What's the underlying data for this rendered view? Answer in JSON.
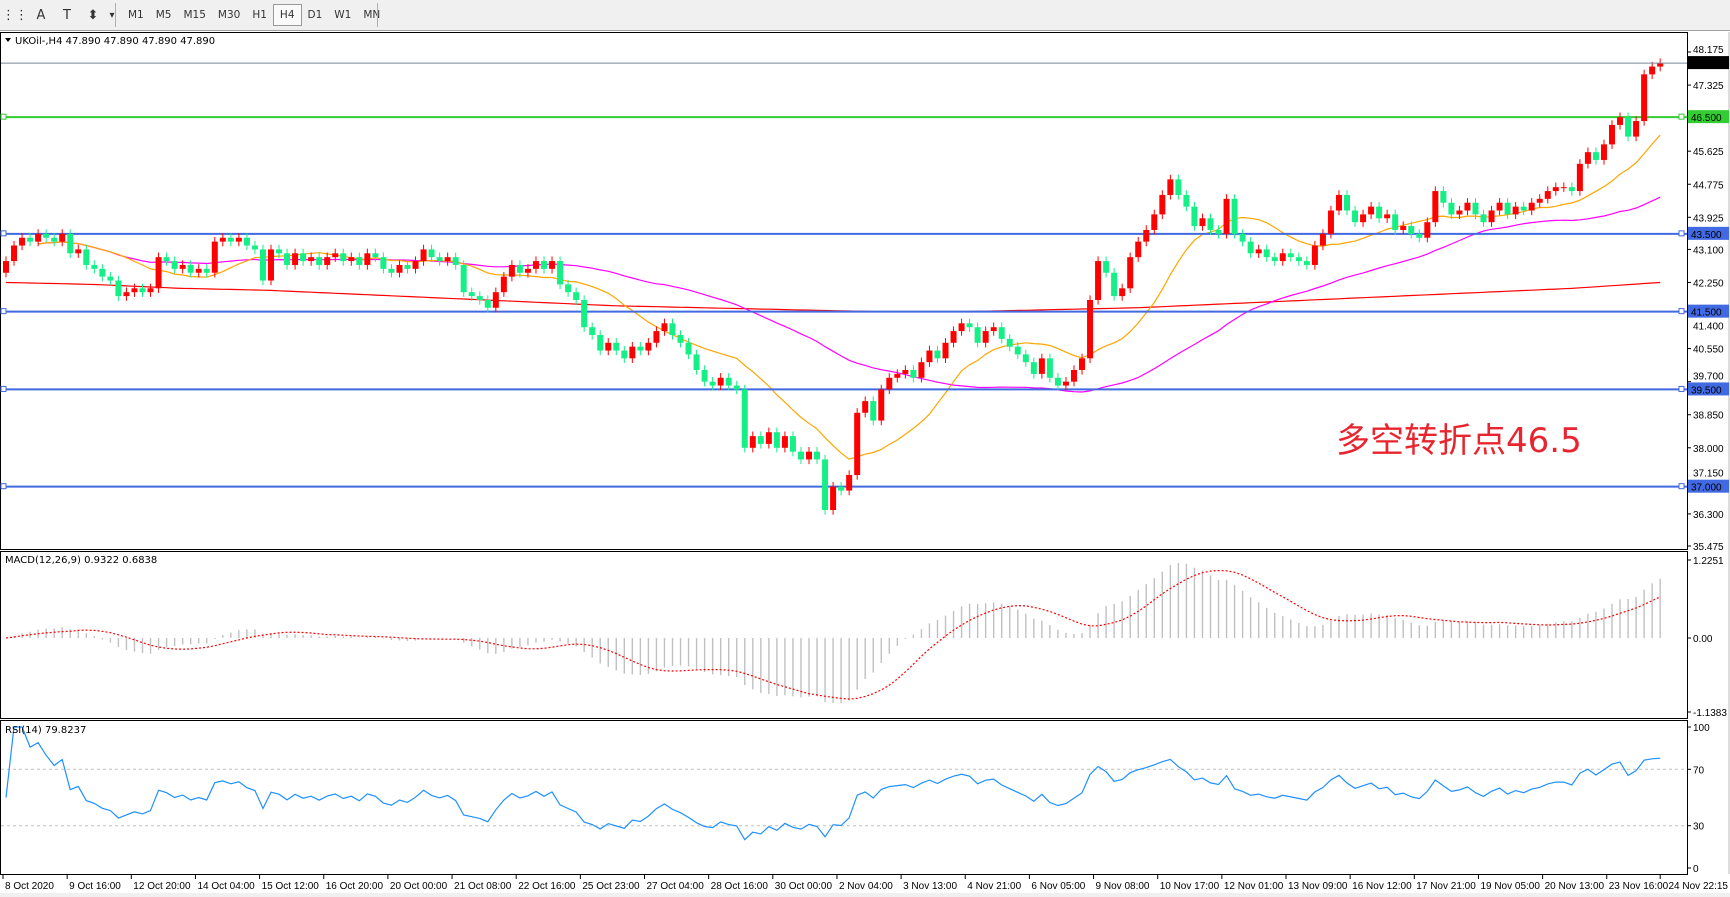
{
  "toolbar": {
    "tools": [
      {
        "icon": "fibo-grid-icon",
        "glyph": "⋮⋮"
      },
      {
        "icon": "text-icon",
        "glyph": "A"
      },
      {
        "icon": "text-label-icon",
        "glyph": "T"
      },
      {
        "icon": "arrows-icon",
        "glyph": "⬍"
      },
      {
        "icon": "chevron-down-icon",
        "glyph": "▾"
      }
    ],
    "timeframes": [
      "M1",
      "M5",
      "M15",
      "M30",
      "H1",
      "H4",
      "D1",
      "W1",
      "MN"
    ],
    "active_timeframe": "H4"
  },
  "chart": {
    "title": "UKOil-,H4  47.890 47.890 47.890 47.890",
    "annotation": "多空转折点46.5",
    "current_price": {
      "value": 47.89,
      "label": "47.890",
      "color": "#000000"
    },
    "price_axis": {
      "min": 35.475,
      "max": 48.175,
      "ticks": [
        "48.175",
        "47.325",
        "45.625",
        "44.775",
        "43.925",
        "43.100",
        "42.250",
        "41.400",
        "40.550",
        "39.700",
        "38.850",
        "38.000",
        "37.150",
        "36.300",
        "35.475"
      ]
    },
    "levels": [
      {
        "value": 46.5,
        "label": "46.500",
        "color": "#32cd32"
      },
      {
        "value": 43.5,
        "label": "43.500",
        "color": "#4169e1"
      },
      {
        "value": 41.5,
        "label": "41.500",
        "color": "#4169e1"
      },
      {
        "value": 39.5,
        "label": "39.500",
        "color": "#4169e1"
      },
      {
        "value": 37.0,
        "label": "37.000",
        "color": "#4169e1"
      }
    ],
    "colors": {
      "up": "#ff0000",
      "down": "#14ef86",
      "ma_fast": "#ffa500",
      "ma_mid": "#ff00ff",
      "ma_slow": "#ff0000"
    },
    "first_open": 42.5,
    "closes": [
      42.8,
      43.2,
      43.4,
      43.3,
      43.5,
      43.4,
      43.3,
      43.5,
      43.0,
      43.1,
      42.7,
      42.6,
      42.4,
      42.3,
      41.9,
      42.0,
      42.1,
      42.0,
      42.1,
      42.9,
      42.8,
      42.6,
      42.7,
      42.5,
      42.6,
      42.5,
      43.3,
      43.4,
      43.3,
      43.4,
      43.2,
      43.1,
      42.3,
      43.1,
      43.0,
      42.7,
      43.0,
      42.8,
      42.9,
      42.7,
      42.9,
      43.0,
      42.8,
      42.9,
      42.7,
      43.0,
      42.9,
      42.6,
      42.5,
      42.7,
      42.6,
      42.8,
      43.1,
      42.9,
      42.8,
      42.9,
      42.7,
      42.0,
      41.9,
      41.8,
      41.6,
      42.0,
      42.4,
      42.7,
      42.5,
      42.6,
      42.8,
      42.6,
      42.8,
      42.2,
      42.0,
      41.8,
      41.1,
      40.9,
      40.5,
      40.7,
      40.5,
      40.3,
      40.6,
      40.5,
      40.7,
      41.0,
      41.2,
      40.9,
      40.7,
      40.4,
      40.0,
      39.7,
      39.6,
      39.8,
      39.6,
      39.5,
      38.0,
      38.3,
      38.1,
      38.4,
      38.0,
      38.3,
      37.9,
      37.7,
      37.9,
      37.7,
      36.4,
      37.0,
      36.9,
      37.3,
      38.9,
      39.2,
      38.7,
      39.5,
      39.8,
      39.9,
      40.0,
      39.8,
      40.2,
      40.5,
      40.3,
      40.7,
      41.0,
      41.2,
      41.1,
      40.7,
      41.0,
      41.1,
      40.8,
      40.6,
      40.4,
      40.2,
      39.9,
      40.3,
      39.8,
      39.6,
      39.7,
      40.0,
      40.3,
      41.8,
      42.8,
      42.5,
      41.9,
      42.1,
      42.9,
      43.3,
      43.6,
      44.0,
      44.5,
      44.9,
      44.5,
      44.2,
      43.7,
      43.9,
      43.6,
      43.5,
      44.4,
      43.5,
      43.3,
      43.0,
      43.1,
      42.9,
      42.8,
      43.0,
      42.9,
      42.8,
      42.7,
      43.2,
      43.5,
      44.1,
      44.5,
      44.1,
      43.8,
      44.0,
      44.2,
      43.9,
      44.0,
      43.6,
      43.7,
      43.5,
      43.4,
      43.8,
      44.6,
      44.3,
      44.0,
      44.1,
      44.3,
      44.0,
      43.8,
      44.1,
      44.3,
      44.0,
      44.2,
      44.1,
      44.3,
      44.4,
      44.6,
      44.7,
      44.7,
      44.6,
      45.3,
      45.6,
      45.4,
      45.8,
      46.3,
      46.5,
      46.0,
      46.4,
      47.6,
      47.8,
      47.89
    ],
    "ma_slow": [
      42.25,
      42.2,
      42.1,
      42.05,
      41.95,
      41.85,
      41.75,
      41.65,
      41.6,
      41.55,
      41.5,
      41.5,
      41.55,
      41.6,
      41.7,
      41.8,
      41.9,
      42.0,
      42.1,
      42.25
    ]
  },
  "macd": {
    "label": "MACD(12,26,9) 0.9322 0.6838",
    "axis": {
      "max": 1.2251,
      "min": -1.1383,
      "ticks": [
        "1.2251",
        "0.00",
        "-1.1383"
      ]
    },
    "histogram_color": "#c0c0c0",
    "signal_color": "#ff0000"
  },
  "rsi": {
    "label": "RSI(14) 79.8237",
    "axis": {
      "ticks": [
        "100",
        "70",
        "30",
        "0"
      ]
    },
    "levels": [
      70,
      30
    ],
    "color": "#1e90ff"
  },
  "time_axis": [
    "8 Oct 2020",
    "9 Oct 16:00",
    "12 Oct 20:00",
    "14 Oct 04:00",
    "15 Oct 12:00",
    "16 Oct 20:00",
    "20 Oct 00:00",
    "21 Oct 08:00",
    "22 Oct 16:00",
    "25 Oct 23:00",
    "27 Oct 04:00",
    "28 Oct 16:00",
    "30 Oct 00:00",
    "2 Nov 04:00",
    "3 Nov 13:00",
    "4 Nov 21:00",
    "6 Nov 05:00",
    "9 Nov 08:00",
    "10 Nov 17:00",
    "12 Nov 01:00",
    "13 Nov 09:00",
    "16 Nov 12:00",
    "17 Nov 21:00",
    "19 Nov 05:00",
    "20 Nov 13:00",
    "23 Nov 16:00",
    "24 Nov 22:15"
  ]
}
